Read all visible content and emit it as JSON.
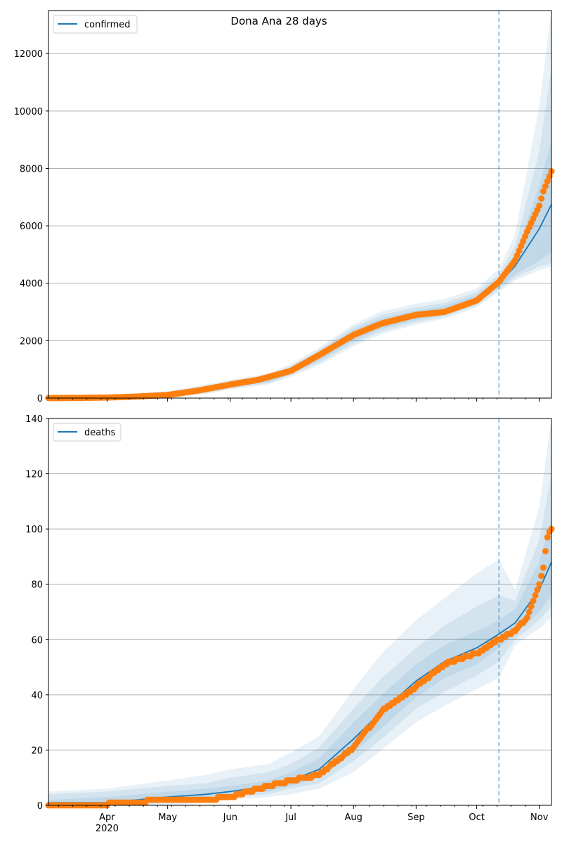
{
  "title": "Dona Ana 28 days",
  "colors": {
    "model": "#1f77b4",
    "observed": "#ff7f0e",
    "band": "#1f77b4",
    "grid": "#b0b0b0",
    "forecast_line": "#1f77b4"
  },
  "chart_data": [
    {
      "type": "line",
      "title": "",
      "legend": "confirmed",
      "legend_position": "top-left",
      "grid": "y",
      "xlim": [
        "2020-03-03",
        "2020-11-07"
      ],
      "ylim": [
        0,
        13500
      ],
      "yticks": [
        0,
        2000,
        4000,
        6000,
        8000,
        10000,
        12000
      ],
      "forecast_start": "2020-10-12",
      "model": {
        "name": "confirmed",
        "x": [
          "2020-03-03",
          "2020-03-20",
          "2020-04-10",
          "2020-05-01",
          "2020-05-20",
          "2020-06-01",
          "2020-06-20",
          "2020-07-01",
          "2020-07-15",
          "2020-08-01",
          "2020-08-15",
          "2020-09-01",
          "2020-09-15",
          "2020-10-01",
          "2020-10-12",
          "2020-10-20",
          "2020-11-01",
          "2020-11-07"
        ],
        "y": [
          0,
          10,
          40,
          100,
          300,
          470,
          650,
          950,
          1450,
          2200,
          2600,
          2900,
          3050,
          3450,
          4000,
          4600,
          5900,
          6750
        ],
        "bands": [
          {
            "lower": [
              0,
              0,
              10,
              50,
              220,
              380,
              560,
              850,
              1300,
              2000,
              2420,
              2720,
              2900,
              3300,
              3850,
              4300,
              4780,
              5080
            ],
            "upper": [
              5,
              30,
              70,
              150,
              370,
              540,
              740,
              1060,
              1600,
              2380,
              2790,
              3050,
              3220,
              3600,
              4150,
              5000,
              7400,
              9000
            ]
          },
          {
            "lower": [
              0,
              0,
              5,
              30,
              180,
              340,
              520,
              800,
              1220,
              1900,
              2320,
              2640,
              2830,
              3230,
              3770,
              4200,
              4580,
              4700
            ],
            "upper": [
              10,
              50,
              100,
              190,
              420,
              590,
              800,
              1120,
              1680,
              2480,
              2900,
              3160,
              3320,
              3700,
              4300,
              5300,
              8600,
              11500
            ]
          },
          {
            "lower": [
              0,
              0,
              0,
              10,
              140,
              300,
              480,
              750,
              1150,
              1800,
              2230,
              2560,
              2760,
              3160,
              3700,
              4100,
              4450,
              4580
            ],
            "upper": [
              20,
              70,
              140,
              240,
              480,
              640,
              860,
              1190,
              1760,
              2580,
              3020,
              3290,
              3450,
              3820,
              4500,
              5700,
              10200,
              13500
            ]
          }
        ]
      },
      "observed": {
        "x": [
          "2020-03-03",
          "2020-03-15",
          "2020-04-01",
          "2020-04-15",
          "2020-05-01",
          "2020-05-15",
          "2020-06-01",
          "2020-06-15",
          "2020-07-01",
          "2020-07-15",
          "2020-08-01",
          "2020-08-15",
          "2020-09-01",
          "2020-09-15",
          "2020-10-01",
          "2020-10-12",
          "2020-10-20",
          "2020-10-26",
          "2020-11-01",
          "2020-11-03",
          "2020-11-05",
          "2020-11-07"
        ],
        "y": [
          0,
          5,
          20,
          50,
          110,
          250,
          470,
          640,
          950,
          1500,
          2200,
          2600,
          2900,
          3000,
          3400,
          4050,
          4800,
          5800,
          6700,
          7200,
          7550,
          7900
        ]
      }
    },
    {
      "type": "line",
      "title": "",
      "legend": "deaths",
      "legend_position": "top-left",
      "grid": "y",
      "xlim": [
        "2020-03-03",
        "2020-11-07"
      ],
      "ylim": [
        0,
        140
      ],
      "yticks": [
        0,
        20,
        40,
        60,
        80,
        100,
        120,
        140
      ],
      "xticks": [
        "Apr",
        "May",
        "Jun",
        "Jul",
        "Aug",
        "Sep",
        "Oct",
        "Nov"
      ],
      "year_label": "2020",
      "forecast_start": "2020-10-12",
      "model": {
        "name": "deaths",
        "x": [
          "2020-03-03",
          "2020-04-01",
          "2020-05-01",
          "2020-05-20",
          "2020-06-01",
          "2020-06-20",
          "2020-07-01",
          "2020-07-15",
          "2020-08-01",
          "2020-08-15",
          "2020-09-01",
          "2020-09-15",
          "2020-10-01",
          "2020-10-12",
          "2020-10-20",
          "2020-11-01",
          "2020-11-07"
        ],
        "y": [
          1,
          1,
          3,
          4,
          5,
          7,
          9,
          13,
          24,
          34,
          45,
          52,
          57,
          62,
          66,
          78,
          88
        ],
        "bands": [
          {
            "lower": [
              0,
              0,
              2,
              3,
              4,
              5,
              7,
              10,
              19,
              28,
              39,
              46,
              51,
              57,
              62,
              70,
              76
            ],
            "upper": [
              2,
              3,
              5,
              6,
              7,
              9,
              12,
              17,
              30,
              40,
              51,
              58,
              63,
              67,
              71,
              88,
              104
            ]
          },
          {
            "lower": [
              0,
              0,
              1,
              2,
              3,
              4,
              6,
              8,
              16,
              24,
              35,
              41,
              47,
              52,
              60,
              67,
              72
            ],
            "upper": [
              4,
              5,
              7,
              8,
              10,
              12,
              15,
              21,
              35,
              46,
              57,
              65,
              72,
              76,
              74,
              96,
              120
            ]
          },
          {
            "lower": [
              0,
              0,
              0,
              1,
              2,
              3,
              4,
              6,
              12,
              20,
              30,
              36,
              42,
              46,
              58,
              64,
              68
            ],
            "upper": [
              5,
              6,
              9,
              11,
              13,
              15,
              19,
              25,
              42,
              55,
              67,
              75,
              84,
              89,
              78,
              108,
              140
            ]
          }
        ]
      },
      "observed": {
        "x": [
          "2020-03-03",
          "2020-03-25",
          "2020-04-10",
          "2020-05-01",
          "2020-05-20",
          "2020-06-01",
          "2020-06-15",
          "2020-07-01",
          "2020-07-15",
          "2020-08-01",
          "2020-08-15",
          "2020-09-01",
          "2020-09-15",
          "2020-10-01",
          "2020-10-12",
          "2020-10-20",
          "2020-10-26",
          "2020-11-01",
          "2020-11-03",
          "2020-11-05",
          "2020-11-07"
        ],
        "y": [
          0,
          0,
          1,
          2,
          2,
          3,
          6,
          9,
          11,
          21,
          34,
          43,
          51,
          55,
          60,
          63,
          68,
          80,
          86,
          97,
          100
        ]
      }
    }
  ]
}
